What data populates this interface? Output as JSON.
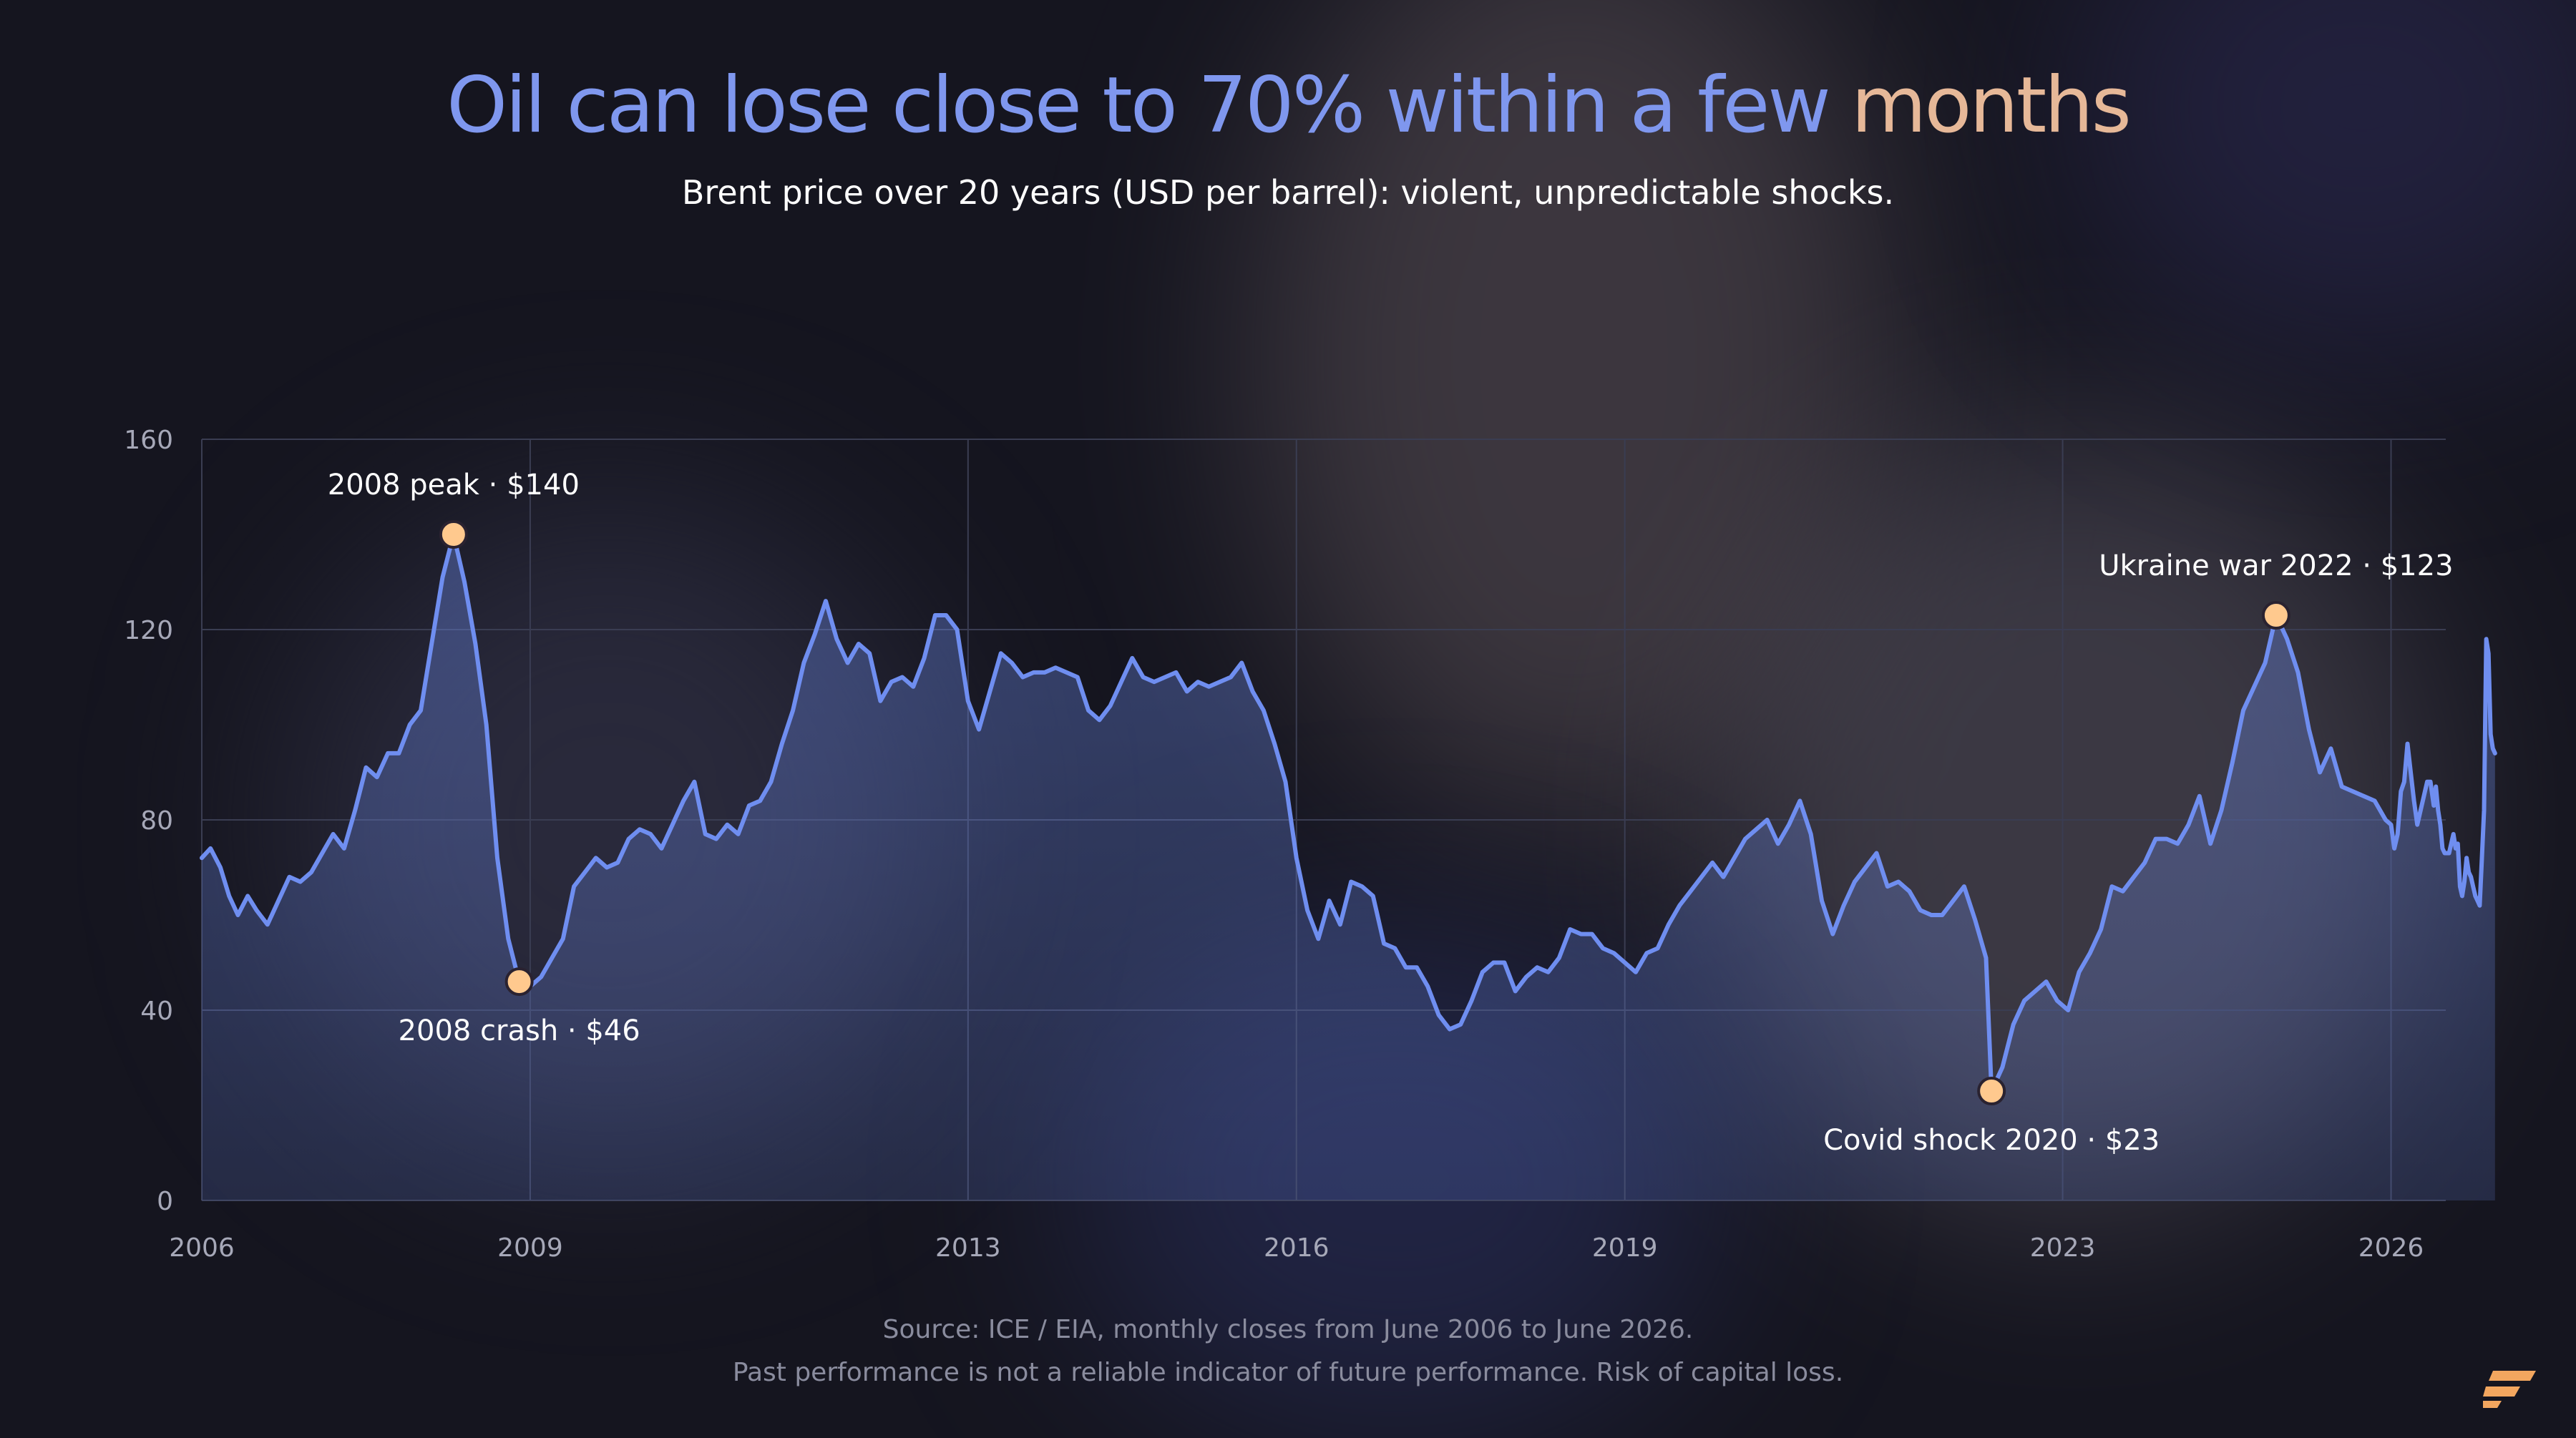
{
  "title": {
    "part1": "Oil can lose close to 70% within a few",
    "part2": "months",
    "color1": "#7f97ee",
    "color2": "#e6b898"
  },
  "subtitle": "Brent price over 20 years (USD per barrel): violent, unpredictable shocks.",
  "footer": {
    "source": "Source: ICE / EIA, monthly closes from June 2006 to June 2026.",
    "disclaimer": "Past performance is not a reliable indicator of future performance. Risk of capital loss."
  },
  "logo": {
    "icon": "brand-logo-icon",
    "color": "#f2a65f"
  },
  "colors": {
    "line": "#6f8ef0",
    "marker": "#ffc98e",
    "marker_stroke": "#2a2230",
    "grid": "#3a3d52",
    "tick": "#a6a8b8",
    "annotation": "#ffffff"
  },
  "chart_data": {
    "type": "area",
    "title": "",
    "xlabel": "",
    "ylabel": "",
    "xlim": [
      2006.0,
      2026.5
    ],
    "ylim": [
      0,
      160
    ],
    "grid": true,
    "legend": "none",
    "x_ticks": [
      2006,
      2009,
      2013,
      2016,
      2019,
      2023,
      2026
    ],
    "y_ticks": [
      0,
      40,
      80,
      120,
      160
    ],
    "series": [
      {
        "name": "",
        "points": [
          [
            2006.0,
            72
          ],
          [
            2006.08,
            74
          ],
          [
            2006.17,
            70
          ],
          [
            2006.25,
            64
          ],
          [
            2006.33,
            60
          ],
          [
            2006.42,
            64
          ],
          [
            2006.5,
            61
          ],
          [
            2006.6,
            58
          ],
          [
            2006.7,
            63
          ],
          [
            2006.8,
            68
          ],
          [
            2006.9,
            67
          ],
          [
            2007.0,
            69
          ],
          [
            2007.1,
            73
          ],
          [
            2007.2,
            77
          ],
          [
            2007.3,
            74
          ],
          [
            2007.4,
            82
          ],
          [
            2007.5,
            91
          ],
          [
            2007.6,
            89
          ],
          [
            2007.7,
            94
          ],
          [
            2007.8,
            94
          ],
          [
            2007.9,
            100
          ],
          [
            2008.0,
            103
          ],
          [
            2008.1,
            117
          ],
          [
            2008.2,
            131
          ],
          [
            2008.3,
            140
          ],
          [
            2008.4,
            130
          ],
          [
            2008.5,
            117
          ],
          [
            2008.6,
            100
          ],
          [
            2008.7,
            72
          ],
          [
            2008.8,
            55
          ],
          [
            2008.9,
            46
          ],
          [
            2009.0,
            45
          ],
          [
            2009.1,
            47
          ],
          [
            2009.2,
            51
          ],
          [
            2009.3,
            55
          ],
          [
            2009.4,
            66
          ],
          [
            2009.5,
            69
          ],
          [
            2009.6,
            72
          ],
          [
            2009.7,
            70
          ],
          [
            2009.8,
            71
          ],
          [
            2009.9,
            76
          ],
          [
            2010.0,
            78
          ],
          [
            2010.1,
            77
          ],
          [
            2010.2,
            74
          ],
          [
            2010.3,
            79
          ],
          [
            2010.4,
            84
          ],
          [
            2010.5,
            88
          ],
          [
            2010.6,
            77
          ],
          [
            2010.7,
            76
          ],
          [
            2010.8,
            79
          ],
          [
            2010.9,
            77
          ],
          [
            2011.0,
            83
          ],
          [
            2011.1,
            84
          ],
          [
            2011.2,
            88
          ],
          [
            2011.3,
            96
          ],
          [
            2011.4,
            103
          ],
          [
            2011.5,
            113
          ],
          [
            2011.6,
            119
          ],
          [
            2011.7,
            126
          ],
          [
            2011.8,
            118
          ],
          [
            2011.9,
            113
          ],
          [
            2012.0,
            117
          ],
          [
            2012.1,
            115
          ],
          [
            2012.2,
            105
          ],
          [
            2012.3,
            109
          ],
          [
            2012.4,
            110
          ],
          [
            2012.5,
            108
          ],
          [
            2012.6,
            114
          ],
          [
            2012.7,
            123
          ],
          [
            2012.8,
            123
          ],
          [
            2012.9,
            120
          ],
          [
            2013.0,
            105
          ],
          [
            2013.1,
            99
          ],
          [
            2013.2,
            107
          ],
          [
            2013.3,
            115
          ],
          [
            2013.4,
            113
          ],
          [
            2013.5,
            110
          ],
          [
            2013.6,
            111
          ],
          [
            2013.7,
            111
          ],
          [
            2013.8,
            112
          ],
          [
            2013.9,
            111
          ],
          [
            2014.0,
            110
          ],
          [
            2014.1,
            103
          ],
          [
            2014.2,
            101
          ],
          [
            2014.3,
            104
          ],
          [
            2014.4,
            109
          ],
          [
            2014.5,
            114
          ],
          [
            2014.6,
            110
          ],
          [
            2014.7,
            109
          ],
          [
            2014.8,
            110
          ],
          [
            2014.9,
            111
          ],
          [
            2015.0,
            107
          ],
          [
            2015.1,
            109
          ],
          [
            2015.2,
            108
          ],
          [
            2015.3,
            109
          ],
          [
            2015.4,
            110
          ],
          [
            2015.5,
            113
          ],
          [
            2015.6,
            107
          ],
          [
            2015.7,
            103
          ],
          [
            2015.8,
            96
          ],
          [
            2015.9,
            88
          ],
          [
            2016.0,
            72
          ],
          [
            2016.1,
            61
          ],
          [
            2016.2,
            55
          ],
          [
            2016.3,
            63
          ],
          [
            2016.4,
            58
          ],
          [
            2016.5,
            67
          ],
          [
            2016.6,
            66
          ],
          [
            2016.7,
            64
          ],
          [
            2016.8,
            54
          ],
          [
            2016.9,
            53
          ],
          [
            2017.0,
            49
          ],
          [
            2017.1,
            49
          ],
          [
            2017.2,
            45
          ],
          [
            2017.3,
            39
          ],
          [
            2017.4,
            36
          ],
          [
            2017.5,
            37
          ],
          [
            2017.6,
            42
          ],
          [
            2017.7,
            48
          ],
          [
            2017.8,
            50
          ],
          [
            2017.9,
            50
          ],
          [
            2018.0,
            44
          ],
          [
            2018.1,
            47
          ],
          [
            2018.2,
            49
          ],
          [
            2018.3,
            48
          ],
          [
            2018.4,
            51
          ],
          [
            2018.5,
            57
          ],
          [
            2018.6,
            56
          ],
          [
            2018.7,
            56
          ],
          [
            2018.8,
            53
          ],
          [
            2018.9,
            52
          ],
          [
            2019.0,
            50
          ],
          [
            2019.1,
            48
          ],
          [
            2019.2,
            52
          ],
          [
            2019.3,
            53
          ],
          [
            2019.4,
            58
          ],
          [
            2019.5,
            62
          ],
          [
            2019.6,
            65
          ],
          [
            2019.7,
            68
          ],
          [
            2019.8,
            71
          ],
          [
            2019.9,
            68
          ],
          [
            2020.0,
            72
          ],
          [
            2020.1,
            76
          ],
          [
            2020.2,
            78
          ],
          [
            2020.3,
            80
          ],
          [
            2020.4,
            75
          ],
          [
            2020.5,
            79
          ],
          [
            2020.6,
            84
          ],
          [
            2020.7,
            77
          ],
          [
            2020.8,
            63
          ],
          [
            2020.9,
            56
          ],
          [
            2021.0,
            62
          ],
          [
            2021.1,
            67
          ],
          [
            2021.2,
            70
          ],
          [
            2021.3,
            73
          ],
          [
            2021.4,
            66
          ],
          [
            2021.5,
            67
          ],
          [
            2021.6,
            65
          ],
          [
            2021.7,
            61
          ],
          [
            2021.8,
            60
          ],
          [
            2021.9,
            60
          ],
          [
            2022.0,
            63
          ],
          [
            2022.1,
            66
          ],
          [
            2022.2,
            59
          ],
          [
            2022.3,
            51
          ],
          [
            2022.35,
            23
          ],
          [
            2022.45,
            28
          ],
          [
            2022.55,
            37
          ],
          [
            2022.65,
            42
          ],
          [
            2022.75,
            44
          ],
          [
            2022.85,
            46
          ],
          [
            2022.95,
            42
          ],
          [
            2023.05,
            40
          ],
          [
            2023.15,
            48
          ],
          [
            2023.25,
            52
          ],
          [
            2023.35,
            57
          ],
          [
            2023.45,
            66
          ],
          [
            2023.55,
            65
          ],
          [
            2023.65,
            68
          ],
          [
            2023.75,
            71
          ],
          [
            2023.85,
            76
          ],
          [
            2023.95,
            76
          ],
          [
            2024.05,
            75
          ],
          [
            2024.15,
            79
          ],
          [
            2024.25,
            85
          ],
          [
            2024.35,
            75
          ],
          [
            2024.45,
            82
          ],
          [
            2024.55,
            92
          ],
          [
            2024.65,
            103
          ],
          [
            2024.75,
            108
          ],
          [
            2024.85,
            113
          ],
          [
            2024.95,
            123
          ],
          [
            2025.05,
            118
          ],
          [
            2025.15,
            111
          ],
          [
            2025.25,
            99
          ],
          [
            2025.35,
            90
          ],
          [
            2025.45,
            95
          ],
          [
            2025.55,
            87
          ],
          [
            2025.65,
            86
          ],
          [
            2025.75,
            85
          ],
          [
            2025.85,
            84
          ],
          [
            2025.95,
            80
          ],
          [
            2026.0,
            79
          ],
          [
            2026.03,
            74
          ],
          [
            2026.06,
            77
          ],
          [
            2026.09,
            86
          ],
          [
            2026.12,
            88
          ],
          [
            2026.15,
            96
          ],
          [
            2026.18,
            90
          ],
          [
            2026.21,
            84
          ],
          [
            2026.24,
            79
          ],
          [
            2026.27,
            82
          ],
          [
            2026.3,
            85
          ],
          [
            2026.33,
            88
          ],
          [
            2026.36,
            88
          ],
          [
            2026.39,
            83
          ],
          [
            2026.41,
            87
          ],
          [
            2026.43,
            82
          ],
          [
            2026.45,
            79
          ],
          [
            2026.47,
            74
          ],
          [
            2026.49,
            73
          ],
          [
            2026.51,
            73
          ],
          [
            2026.53,
            73
          ],
          [
            2026.55,
            75
          ],
          [
            2026.57,
            77
          ],
          [
            2026.59,
            74
          ],
          [
            2026.61,
            75
          ],
          [
            2026.63,
            66
          ],
          [
            2026.65,
            64
          ],
          [
            2026.67,
            67
          ],
          [
            2026.69,
            72
          ],
          [
            2026.71,
            69
          ],
          [
            2026.73,
            68
          ],
          [
            2026.75,
            66
          ],
          [
            2026.77,
            64
          ],
          [
            2026.79,
            63
          ],
          [
            2026.81,
            62
          ],
          [
            2026.83,
            72
          ],
          [
            2026.85,
            82
          ],
          [
            2026.87,
            118
          ],
          [
            2026.89,
            115
          ],
          [
            2026.91,
            98
          ],
          [
            2026.93,
            95
          ],
          [
            2026.95,
            94
          ]
        ]
      }
    ],
    "annotations": [
      {
        "label": "2008 peak · $140",
        "x": 2008.3,
        "y": 140,
        "position": "above"
      },
      {
        "label": "2008 crash · $46",
        "x": 2008.9,
        "y": 46,
        "position": "below"
      },
      {
        "label": "Covid shock 2020 · $23",
        "x": 2022.35,
        "y": 23,
        "position": "below"
      },
      {
        "label": "Ukraine war 2022 · $123",
        "x": 2024.95,
        "y": 123,
        "position": "above"
      }
    ]
  }
}
